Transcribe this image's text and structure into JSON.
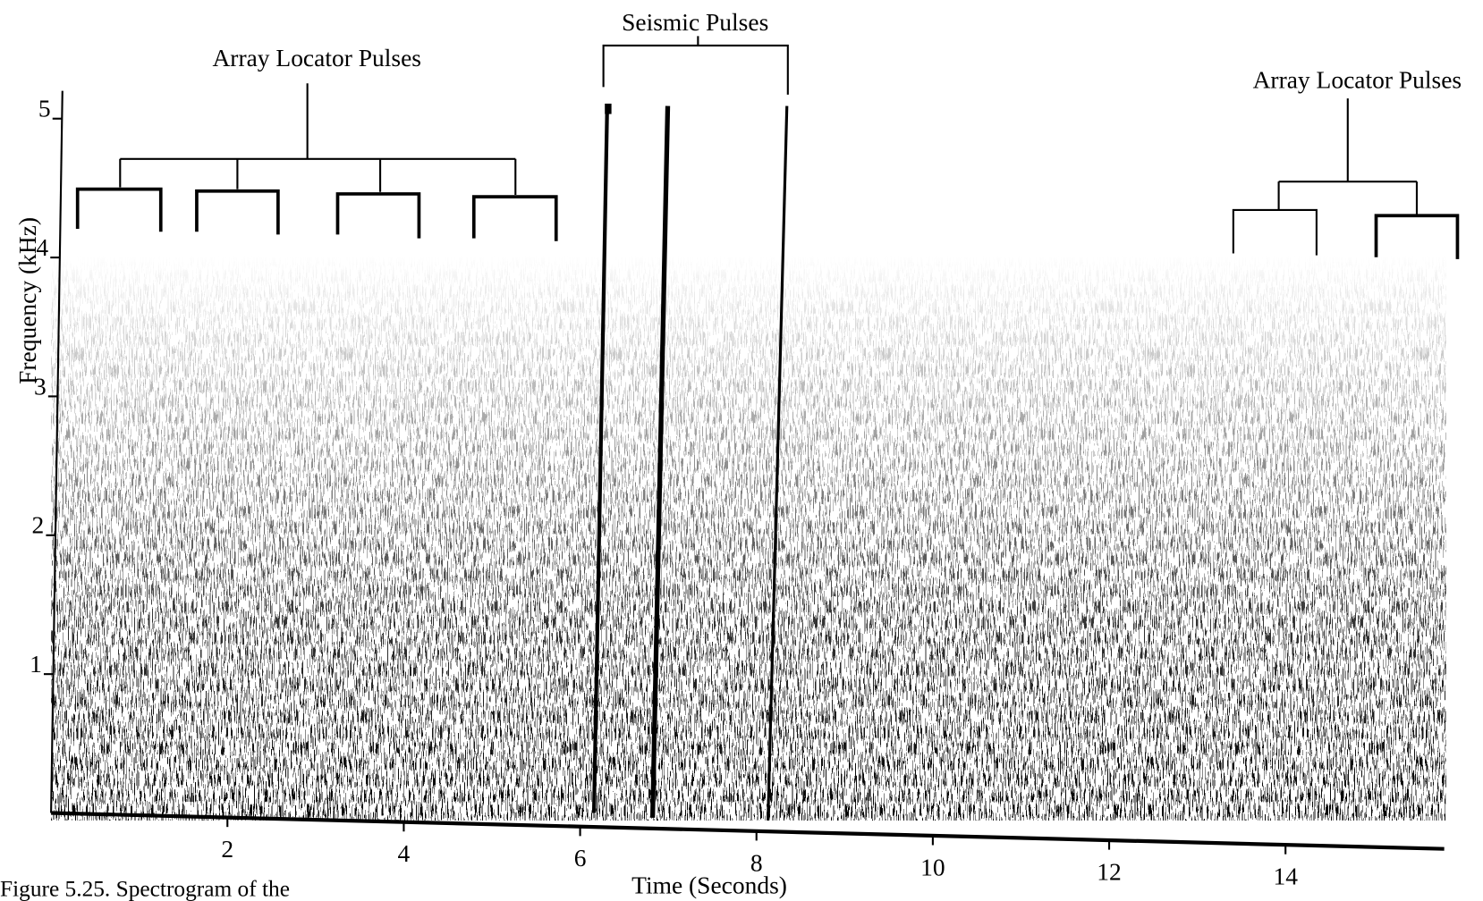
{
  "chart_data": {
    "type": "spectrogram",
    "x_label": "Time (Seconds)",
    "y_label": "Frequency (kHz)",
    "xlim": [
      0,
      15.8
    ],
    "ylim": [
      0,
      5.2
    ],
    "xticks": [
      2,
      4,
      6,
      8,
      10,
      12,
      14
    ],
    "yticks": [
      1,
      2,
      3,
      4,
      5
    ],
    "annotations": [
      "Array Locator Pulses",
      "Seismic Pulses",
      "Array Locator Pulses"
    ],
    "caption": "Figure 5.25. Spectrogram of the"
  }
}
